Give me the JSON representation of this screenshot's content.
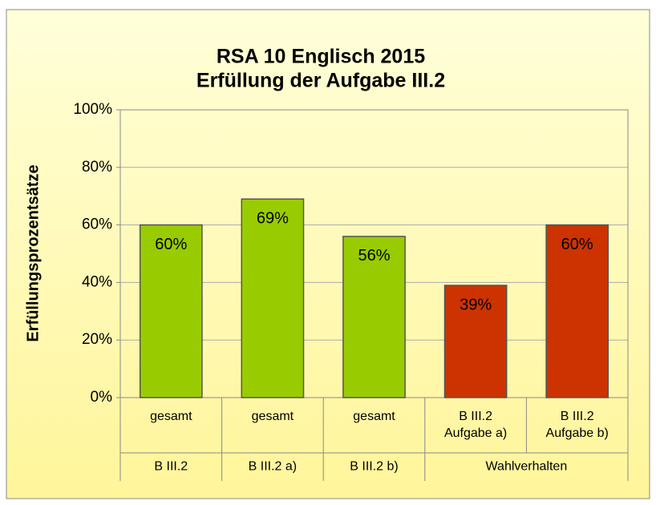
{
  "chart_data": {
    "type": "bar",
    "title": [
      "RSA 10 Englisch 2015",
      "Erfüllung der Aufgabe III.2"
    ],
    "y_label": "Erfüllungsprozentsätze",
    "categories": [
      [
        "gesamt"
      ],
      [
        "gesamt"
      ],
      [
        "gesamt"
      ],
      [
        "B III.2",
        "Aufgabe a)"
      ],
      [
        "B III.2",
        "Aufgabe b)"
      ]
    ],
    "groups": [
      {
        "label": "B III.2",
        "span": 1
      },
      {
        "label": "B III.2 a)",
        "span": 1
      },
      {
        "label": "B III.2 b)",
        "span": 1
      },
      {
        "label": "Wahlverhalten",
        "span": 2
      }
    ],
    "values": [
      60,
      69,
      56,
      39,
      60
    ],
    "value_labels": [
      "60%",
      "69%",
      "56%",
      "39%",
      "60%"
    ],
    "colors": [
      "#99cc00",
      "#99cc00",
      "#99cc00",
      "#cc3300",
      "#cc3300"
    ],
    "ylim": [
      0,
      100
    ],
    "yticks": [
      {
        "value": 0,
        "label": "0%"
      },
      {
        "value": 20,
        "label": "20%"
      },
      {
        "value": 40,
        "label": "40%"
      },
      {
        "value": 60,
        "label": "60%"
      },
      {
        "value": 80,
        "label": "80%"
      },
      {
        "value": 100,
        "label": "100%"
      }
    ],
    "grid": true
  }
}
